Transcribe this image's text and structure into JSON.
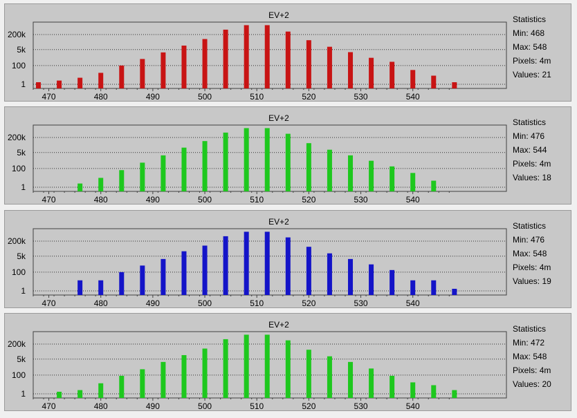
{
  "chart_data": [
    {
      "type": "bar",
      "title": "EV+2",
      "bar_color": "#c81414",
      "x": [
        468,
        472,
        476,
        480,
        484,
        488,
        492,
        496,
        500,
        504,
        508,
        512,
        516,
        520,
        524,
        528,
        532,
        536,
        540,
        544,
        548
      ],
      "values": [
        1,
        1.5,
        3,
        10,
        60,
        300,
        1500,
        8000,
        40000,
        400000,
        1200000,
        1200000,
        250000,
        30000,
        6000,
        1600,
        400,
        150,
        20,
        5,
        1
      ],
      "xlim": [
        467,
        558
      ],
      "x_ticks": [
        "470",
        "480",
        "490",
        "500",
        "510",
        "520",
        "530",
        "540"
      ],
      "y_ticks": [
        "200k",
        "5k",
        "100",
        "1"
      ],
      "y_scale": "log",
      "grid": "horizontal dotted",
      "stats": {
        "heading": "Statistics",
        "min_label": "Min:",
        "min": "468",
        "max_label": "Max:",
        "max": "548",
        "pixels_label": "Pixels:",
        "pixels": "4m",
        "values_label": "Values:",
        "values": "21"
      }
    },
    {
      "type": "bar",
      "title": "EV+2",
      "bar_color": "#1ec81e",
      "x": [
        476,
        480,
        484,
        488,
        492,
        496,
        500,
        504,
        508,
        512,
        516,
        520,
        524,
        528,
        532,
        536,
        540,
        544
      ],
      "values": [
        1.5,
        6,
        40,
        250,
        1500,
        10000,
        50000,
        400000,
        1200000,
        1200000,
        300000,
        30000,
        6000,
        1500,
        400,
        100,
        20,
        3
      ],
      "xlim": [
        467,
        558
      ],
      "x_ticks": [
        "470",
        "480",
        "490",
        "500",
        "510",
        "520",
        "530",
        "540"
      ],
      "y_ticks": [
        "200k",
        "5k",
        "100",
        "1"
      ],
      "y_scale": "log",
      "grid": "horizontal dotted",
      "stats": {
        "heading": "Statistics",
        "min_label": "Min:",
        "min": "476",
        "max_label": "Max:",
        "max": "544",
        "pixels_label": "Pixels:",
        "pixels": "4m",
        "values_label": "Values:",
        "values": "18"
      }
    },
    {
      "type": "bar",
      "title": "EV+2",
      "bar_color": "#1414c8",
      "x": [
        476,
        480,
        484,
        488,
        492,
        496,
        500,
        504,
        508,
        512,
        516,
        520,
        524,
        528,
        532,
        536,
        540,
        544,
        548
      ],
      "values": [
        8,
        8,
        60,
        300,
        1500,
        10000,
        40000,
        400000,
        1200000,
        1200000,
        300000,
        30000,
        6000,
        1500,
        400,
        100,
        8,
        8,
        1
      ],
      "xlim": [
        467,
        558
      ],
      "x_ticks": [
        "470",
        "480",
        "490",
        "500",
        "510",
        "520",
        "530",
        "540"
      ],
      "y_ticks": [
        "200k",
        "5k",
        "100",
        "1"
      ],
      "y_scale": "log",
      "grid": "horizontal dotted",
      "stats": {
        "heading": "Statistics",
        "min_label": "Min:",
        "min": "476",
        "max_label": "Max:",
        "max": "548",
        "pixels_label": "Pixels:",
        "pixels": "4m",
        "values_label": "Values:",
        "values": "19"
      }
    },
    {
      "type": "bar",
      "title": "EV+2",
      "bar_color": "#1ec81e",
      "x": [
        472,
        476,
        480,
        484,
        488,
        492,
        496,
        500,
        504,
        508,
        512,
        516,
        520,
        524,
        528,
        532,
        536,
        540,
        544,
        548
      ],
      "values": [
        1,
        1.5,
        8,
        50,
        250,
        1500,
        8000,
        40000,
        400000,
        1200000,
        1200000,
        300000,
        30000,
        6000,
        1500,
        300,
        50,
        10,
        5,
        1.5
      ],
      "xlim": [
        467,
        558
      ],
      "x_ticks": [
        "470",
        "480",
        "490",
        "500",
        "510",
        "520",
        "530",
        "540"
      ],
      "y_ticks": [
        "200k",
        "5k",
        "100",
        "1"
      ],
      "y_scale": "log",
      "grid": "horizontal dotted",
      "stats": {
        "heading": "Statistics",
        "min_label": "Min:",
        "min": "472",
        "max_label": "Max:",
        "max": "548",
        "pixels_label": "Pixels:",
        "pixels": "4m",
        "values_label": "Values:",
        "values": "20"
      }
    }
  ]
}
